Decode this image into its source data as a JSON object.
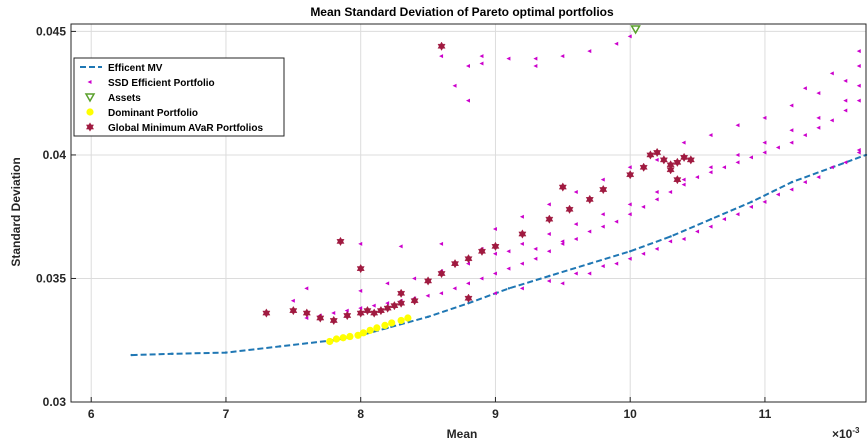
{
  "chart_data": {
    "type": "scatter",
    "title": "Mean Standard Deviation of Pareto optimal portfolios",
    "xlabel": "Mean",
    "ylabel": "Standard Deviation",
    "x_exponent_label": "×10",
    "x_exponent_power": "-3",
    "xlim": [
      5.85,
      11.75
    ],
    "ylim": [
      0.03,
      0.0453
    ],
    "x_ticks": [
      "6",
      "7",
      "8",
      "9",
      "10",
      "11"
    ],
    "y_ticks": [
      "0.03",
      "0.035",
      "0.04",
      "0.045"
    ],
    "grid": true,
    "legend_position": "top-left",
    "series": [
      {
        "name": "Efficent MV",
        "marker": "dashed-line",
        "color": "#1f77b4",
        "points": [
          [
            6.3,
            0.0319
          ],
          [
            6.6,
            0.03195
          ],
          [
            7.0,
            0.032
          ],
          [
            7.4,
            0.03225
          ],
          [
            7.8,
            0.0325
          ],
          [
            8.0,
            0.0327
          ],
          [
            8.2,
            0.033
          ],
          [
            8.5,
            0.03345
          ],
          [
            8.8,
            0.034
          ],
          [
            9.1,
            0.0346
          ],
          [
            9.4,
            0.0351
          ],
          [
            9.7,
            0.0356
          ],
          [
            10.0,
            0.0361
          ],
          [
            10.3,
            0.0367
          ],
          [
            10.6,
            0.0374
          ],
          [
            10.9,
            0.0381
          ],
          [
            11.2,
            0.0389
          ],
          [
            11.5,
            0.0395
          ],
          [
            11.75,
            0.04
          ]
        ]
      },
      {
        "name": "SSD Efficient Portfolio",
        "marker": "triangle-left",
        "color": "#cc00cc",
        "points": [
          [
            7.6,
            0.0334
          ],
          [
            7.7,
            0.0335
          ],
          [
            7.8,
            0.0336
          ],
          [
            7.9,
            0.0337
          ],
          [
            8.0,
            0.0338
          ],
          [
            8.1,
            0.0339
          ],
          [
            8.2,
            0.034
          ],
          [
            8.3,
            0.0341
          ],
          [
            8.4,
            0.0342
          ],
          [
            8.5,
            0.0343
          ],
          [
            8.6,
            0.0344
          ],
          [
            8.7,
            0.0346
          ],
          [
            8.8,
            0.0348
          ],
          [
            8.9,
            0.035
          ],
          [
            9.0,
            0.0352
          ],
          [
            9.1,
            0.0354
          ],
          [
            9.2,
            0.0356
          ],
          [
            9.3,
            0.0358
          ],
          [
            9.4,
            0.0361
          ],
          [
            9.5,
            0.0364
          ],
          [
            9.6,
            0.0366
          ],
          [
            9.7,
            0.0369
          ],
          [
            9.8,
            0.0371
          ],
          [
            9.9,
            0.0373
          ],
          [
            10.0,
            0.0376
          ],
          [
            10.1,
            0.0379
          ],
          [
            10.2,
            0.0382
          ],
          [
            10.3,
            0.0385
          ],
          [
            10.4,
            0.0388
          ],
          [
            10.5,
            0.0391
          ],
          [
            10.6,
            0.0393
          ],
          [
            10.7,
            0.0395
          ],
          [
            10.8,
            0.0397
          ],
          [
            10.9,
            0.0399
          ],
          [
            11.0,
            0.0401
          ],
          [
            11.1,
            0.0403
          ],
          [
            11.2,
            0.0405
          ],
          [
            11.3,
            0.0408
          ],
          [
            11.4,
            0.0411
          ],
          [
            11.5,
            0.0414
          ],
          [
            11.6,
            0.0418
          ],
          [
            11.7,
            0.0422
          ],
          [
            8.0,
            0.0345
          ],
          [
            8.2,
            0.0348
          ],
          [
            8.4,
            0.035
          ],
          [
            8.6,
            0.0353
          ],
          [
            8.8,
            0.0356
          ],
          [
            9.0,
            0.036
          ],
          [
            9.2,
            0.0364
          ],
          [
            9.4,
            0.0368
          ],
          [
            9.6,
            0.0372
          ],
          [
            9.8,
            0.0376
          ],
          [
            10.0,
            0.038
          ],
          [
            10.2,
            0.0385
          ],
          [
            10.4,
            0.039
          ],
          [
            10.6,
            0.0395
          ],
          [
            10.8,
            0.04
          ],
          [
            11.0,
            0.0405
          ],
          [
            11.2,
            0.041
          ],
          [
            11.4,
            0.0415
          ],
          [
            11.6,
            0.0422
          ],
          [
            11.7,
            0.0428
          ],
          [
            9.0,
            0.0344
          ],
          [
            9.2,
            0.0346
          ],
          [
            9.4,
            0.0349
          ],
          [
            9.6,
            0.0352
          ],
          [
            9.8,
            0.0355
          ],
          [
            10.0,
            0.0358
          ],
          [
            10.2,
            0.0362
          ],
          [
            10.4,
            0.0366
          ],
          [
            10.6,
            0.0371
          ],
          [
            10.8,
            0.0376
          ],
          [
            11.0,
            0.0381
          ],
          [
            11.2,
            0.0386
          ],
          [
            11.4,
            0.0391
          ],
          [
            11.6,
            0.0397
          ],
          [
            11.7,
            0.0402
          ],
          [
            9.5,
            0.0348
          ],
          [
            9.7,
            0.0352
          ],
          [
            9.9,
            0.0356
          ],
          [
            10.1,
            0.036
          ],
          [
            10.3,
            0.0365
          ],
          [
            10.5,
            0.0369
          ],
          [
            10.7,
            0.0374
          ],
          [
            10.9,
            0.0379
          ],
          [
            11.1,
            0.0384
          ],
          [
            11.3,
            0.0389
          ],
          [
            11.5,
            0.0395
          ],
          [
            11.7,
            0.0401
          ],
          [
            8.6,
            0.0364
          ],
          [
            8.9,
            0.0362
          ],
          [
            9.1,
            0.0361
          ],
          [
            9.3,
            0.0362
          ],
          [
            9.5,
            0.0365
          ],
          [
            8.3,
            0.0363
          ],
          [
            8.0,
            0.0364
          ],
          [
            7.6,
            0.0346
          ],
          [
            7.5,
            0.0341
          ],
          [
            8.6,
            0.044
          ],
          [
            8.9,
            0.044
          ],
          [
            9.1,
            0.0439
          ],
          [
            9.3,
            0.0439
          ],
          [
            9.5,
            0.044
          ],
          [
            9.7,
            0.0442
          ],
          [
            9.9,
            0.0445
          ],
          [
            10.0,
            0.0448
          ],
          [
            8.9,
            0.0437
          ],
          [
            8.7,
            0.0428
          ],
          [
            8.8,
            0.0436
          ],
          [
            9.3,
            0.0436
          ],
          [
            8.8,
            0.0422
          ],
          [
            10.4,
            0.0405
          ],
          [
            10.6,
            0.0408
          ],
          [
            10.8,
            0.0412
          ],
          [
            11.0,
            0.0415
          ],
          [
            11.2,
            0.042
          ],
          [
            11.4,
            0.0425
          ],
          [
            11.6,
            0.043
          ],
          [
            11.7,
            0.0436
          ],
          [
            11.7,
            0.0442
          ],
          [
            11.5,
            0.0433
          ],
          [
            11.3,
            0.0427
          ],
          [
            10.0,
            0.0395
          ],
          [
            10.2,
            0.0398
          ],
          [
            9.8,
            0.039
          ],
          [
            9.6,
            0.0385
          ],
          [
            9.4,
            0.038
          ],
          [
            9.2,
            0.0375
          ],
          [
            9.0,
            0.037
          ]
        ]
      },
      {
        "name": "Assets",
        "marker": "triangle-down",
        "color": "#5aa02c",
        "points": [
          [
            10.04,
            0.0451
          ]
        ]
      },
      {
        "name": "Dominant Portfolio",
        "marker": "circle",
        "color": "#ffff00",
        "points": [
          [
            7.77,
            0.03245
          ],
          [
            7.82,
            0.03255
          ],
          [
            7.87,
            0.0326
          ],
          [
            7.92,
            0.03265
          ],
          [
            7.98,
            0.0327
          ],
          [
            8.02,
            0.0328
          ],
          [
            8.07,
            0.0329
          ],
          [
            8.12,
            0.033
          ],
          [
            8.18,
            0.0331
          ],
          [
            8.23,
            0.0332
          ],
          [
            8.3,
            0.0333
          ],
          [
            8.35,
            0.0334
          ]
        ]
      },
      {
        "name": "Global Minimum AVaR Portfolios",
        "marker": "hexagram",
        "color": "#a01a40",
        "points": [
          [
            7.3,
            0.0336
          ],
          [
            7.5,
            0.0337
          ],
          [
            7.6,
            0.0336
          ],
          [
            7.7,
            0.0334
          ],
          [
            7.8,
            0.0333
          ],
          [
            7.9,
            0.0335
          ],
          [
            8.0,
            0.0336
          ],
          [
            8.05,
            0.0337
          ],
          [
            8.1,
            0.0336
          ],
          [
            8.15,
            0.0337
          ],
          [
            8.2,
            0.0338
          ],
          [
            8.25,
            0.0339
          ],
          [
            8.3,
            0.034
          ],
          [
            8.4,
            0.0341
          ],
          [
            7.85,
            0.0365
          ],
          [
            8.3,
            0.0344
          ],
          [
            8.5,
            0.0349
          ],
          [
            8.6,
            0.0352
          ],
          [
            8.7,
            0.0356
          ],
          [
            8.8,
            0.0358
          ],
          [
            8.9,
            0.0361
          ],
          [
            9.0,
            0.0363
          ],
          [
            9.2,
            0.0368
          ],
          [
            9.4,
            0.0374
          ],
          [
            9.55,
            0.0378
          ],
          [
            9.7,
            0.0382
          ],
          [
            9.8,
            0.0386
          ],
          [
            10.0,
            0.0392
          ],
          [
            10.1,
            0.0395
          ],
          [
            10.15,
            0.04
          ],
          [
            10.2,
            0.0401
          ],
          [
            10.25,
            0.0398
          ],
          [
            10.3,
            0.0396
          ],
          [
            10.35,
            0.0397
          ],
          [
            10.4,
            0.0399
          ],
          [
            10.45,
            0.0398
          ],
          [
            10.3,
            0.0394
          ],
          [
            8.6,
            0.0444
          ],
          [
            8.0,
            0.0354
          ],
          [
            8.8,
            0.0342
          ],
          [
            9.5,
            0.0387
          ],
          [
            10.35,
            0.039
          ]
        ]
      }
    ]
  }
}
